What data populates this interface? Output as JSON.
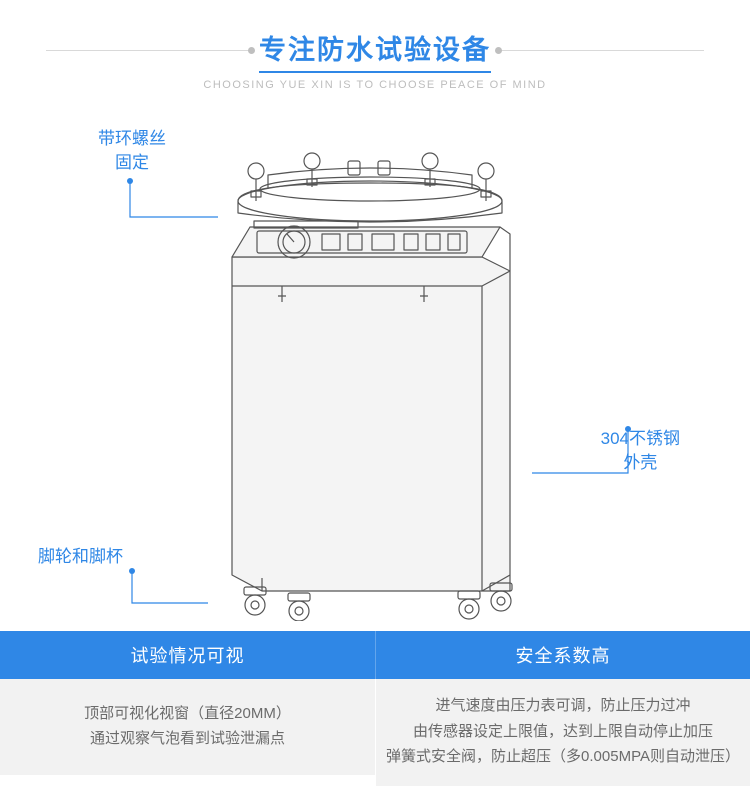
{
  "colors": {
    "accent": "#2f87e6",
    "deco_line": "#d9d9d9",
    "deco_dot": "#bfbfbf",
    "subtitle": "#bdbdbd",
    "leader": "#2f87e6",
    "table_head_bg": "#2f87e6",
    "table_body_bg": "#f2f2f2",
    "table_body_text": "#6b6b6b",
    "device_stroke": "#555555",
    "device_fill": "#f4f4f4"
  },
  "header": {
    "title": "专注防水试验设备",
    "subtitle": "CHOOSING YUE XIN IS TO CHOOSE PEACE OF MIND"
  },
  "callouts": {
    "ring": {
      "line1": "带环螺丝",
      "line2": "固定"
    },
    "shell": {
      "line1": "304不锈钢",
      "line2": "外壳"
    },
    "wheel": {
      "line1": "脚轮和脚杯"
    }
  },
  "table": {
    "left": {
      "head": "试验情况可视",
      "body": [
        "顶部可视化视窗（直径20MM）",
        "通过观察气泡看到试验泄漏点"
      ]
    },
    "right": {
      "head": "安全系数高",
      "body": [
        "进气速度由压力表可调，防止压力过冲",
        "由传感器设定上限值，达到上限自动停止加压",
        "弹簧式安全阀，防止超压（多0.005MPA则自动泄压）"
      ]
    }
  }
}
